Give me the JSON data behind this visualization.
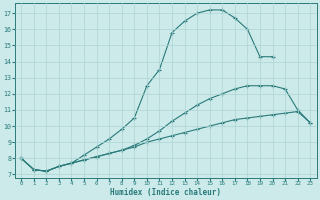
{
  "xlabel": "Humidex (Indice chaleur)",
  "background_color": "#cceaea",
  "grid_color": "#add4d4",
  "line_color": "#2a7a7a",
  "xlim": [
    -0.5,
    23.5
  ],
  "ylim": [
    6.8,
    17.6
  ],
  "xticks": [
    0,
    1,
    2,
    3,
    4,
    5,
    6,
    7,
    8,
    9,
    10,
    11,
    12,
    13,
    14,
    15,
    16,
    17,
    18,
    19,
    20,
    21,
    22,
    23
  ],
  "yticks": [
    7,
    8,
    9,
    10,
    11,
    12,
    13,
    14,
    15,
    16,
    17
  ],
  "line1_x": [
    0,
    1,
    2,
    3,
    4,
    5,
    6,
    7,
    8,
    9,
    10,
    11,
    12,
    13,
    14,
    15,
    16,
    17,
    18,
    19,
    20
  ],
  "line1_y": [
    8.0,
    7.3,
    7.2,
    7.5,
    7.7,
    8.2,
    8.7,
    9.2,
    9.8,
    10.5,
    12.5,
    13.5,
    15.8,
    16.5,
    17.0,
    17.2,
    17.2,
    16.7,
    16.0,
    14.3,
    14.3
  ],
  "line2_x": [
    0,
    1,
    2,
    3,
    4,
    5,
    6,
    7,
    8,
    9,
    10,
    11,
    12,
    13,
    14,
    15,
    16,
    17,
    18,
    19,
    20,
    21,
    22,
    23
  ],
  "line2_y": [
    8.0,
    7.3,
    7.2,
    7.5,
    7.7,
    7.9,
    8.1,
    8.3,
    8.5,
    8.8,
    9.2,
    9.7,
    10.3,
    10.8,
    11.3,
    11.7,
    12.0,
    12.3,
    12.5,
    12.5,
    12.5,
    12.3,
    11.0,
    10.2
  ],
  "line3_x": [
    0,
    1,
    2,
    3,
    4,
    5,
    6,
    7,
    8,
    9,
    10,
    11,
    12,
    13,
    14,
    15,
    16,
    17,
    18,
    19,
    20,
    21,
    22,
    23
  ],
  "line3_y": [
    8.0,
    7.3,
    7.2,
    7.5,
    7.7,
    7.9,
    8.1,
    8.3,
    8.5,
    8.7,
    9.0,
    9.2,
    9.4,
    9.6,
    9.8,
    10.0,
    10.2,
    10.4,
    10.5,
    10.6,
    10.7,
    10.8,
    10.9,
    10.2
  ]
}
